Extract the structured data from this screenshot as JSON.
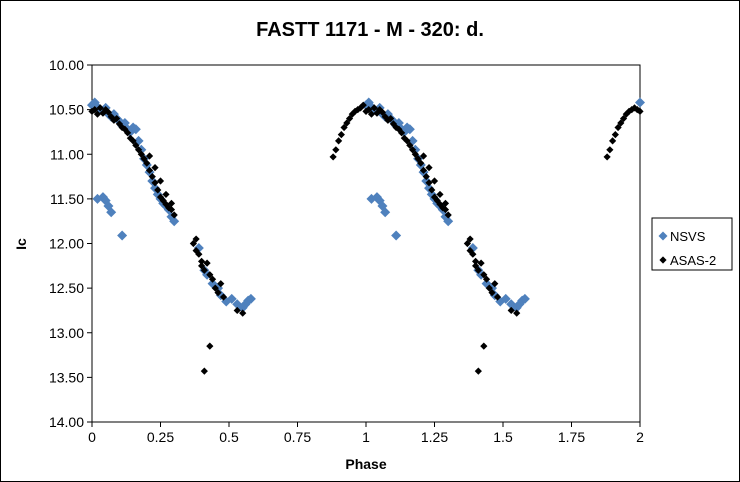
{
  "chart_data": {
    "type": "scatter",
    "title": "FASTT 1171 - M - 320: d.",
    "xlabel": "Phase",
    "ylabel": "Ic",
    "xlim": [
      0,
      2
    ],
    "ylim": [
      10.0,
      14.0
    ],
    "y_reversed": true,
    "x_ticks": [
      "0",
      "0.25",
      "0.5",
      "0.75",
      "1",
      "1.25",
      "1.5",
      "1.75",
      "2"
    ],
    "y_ticks": [
      "10.00",
      "10.50",
      "11.00",
      "11.50",
      "12.00",
      "12.50",
      "13.00",
      "13.50",
      "14.00"
    ],
    "grid": false,
    "legend": "right",
    "series": [
      {
        "name": "NSVS",
        "color": "#4F81BD",
        "marker": "diamond",
        "points": [
          [
            0.0,
            10.45
          ],
          [
            0.01,
            10.42
          ],
          [
            0.02,
            10.47
          ],
          [
            0.03,
            10.5
          ],
          [
            0.04,
            10.52
          ],
          [
            0.05,
            10.48
          ],
          [
            0.06,
            10.55
          ],
          [
            0.07,
            10.58
          ],
          [
            0.08,
            10.55
          ],
          [
            0.09,
            10.6
          ],
          [
            0.1,
            10.63
          ],
          [
            0.11,
            10.68
          ],
          [
            0.12,
            10.65
          ],
          [
            0.13,
            10.72
          ],
          [
            0.14,
            10.75
          ],
          [
            0.15,
            10.7
          ],
          [
            0.16,
            10.72
          ],
          [
            0.17,
            10.85
          ],
          [
            0.18,
            10.95
          ],
          [
            0.19,
            11.05
          ],
          [
            0.2,
            11.12
          ],
          [
            0.21,
            11.2
          ],
          [
            0.22,
            11.3
          ],
          [
            0.23,
            11.38
          ],
          [
            0.24,
            11.45
          ],
          [
            0.25,
            11.5
          ],
          [
            0.26,
            11.55
          ],
          [
            0.27,
            11.58
          ],
          [
            0.28,
            11.62
          ],
          [
            0.29,
            11.7
          ],
          [
            0.3,
            11.75
          ],
          [
            0.02,
            11.5
          ],
          [
            0.04,
            11.48
          ],
          [
            0.05,
            11.52
          ],
          [
            0.06,
            11.58
          ],
          [
            0.07,
            11.65
          ],
          [
            0.11,
            11.91
          ],
          [
            0.39,
            12.05
          ],
          [
            0.41,
            12.3
          ],
          [
            0.42,
            12.35
          ],
          [
            0.44,
            12.45
          ],
          [
            0.46,
            12.5
          ],
          [
            0.47,
            12.58
          ],
          [
            0.49,
            12.65
          ],
          [
            0.51,
            12.62
          ],
          [
            0.53,
            12.68
          ],
          [
            0.55,
            12.72
          ],
          [
            0.56,
            12.68
          ],
          [
            0.57,
            12.64
          ],
          [
            0.58,
            12.62
          ],
          [
            1.0,
            10.45
          ],
          [
            1.01,
            10.42
          ],
          [
            1.02,
            10.47
          ],
          [
            1.03,
            10.5
          ],
          [
            1.04,
            10.52
          ],
          [
            1.05,
            10.48
          ],
          [
            1.06,
            10.55
          ],
          [
            1.07,
            10.58
          ],
          [
            1.08,
            10.55
          ],
          [
            1.09,
            10.6
          ],
          [
            1.1,
            10.63
          ],
          [
            1.11,
            10.68
          ],
          [
            1.12,
            10.65
          ],
          [
            1.13,
            10.72
          ],
          [
            1.14,
            10.75
          ],
          [
            1.15,
            10.7
          ],
          [
            1.16,
            10.72
          ],
          [
            1.17,
            10.85
          ],
          [
            1.18,
            10.95
          ],
          [
            1.19,
            11.05
          ],
          [
            1.2,
            11.12
          ],
          [
            1.21,
            11.2
          ],
          [
            1.22,
            11.3
          ],
          [
            1.23,
            11.38
          ],
          [
            1.24,
            11.45
          ],
          [
            1.25,
            11.5
          ],
          [
            1.26,
            11.55
          ],
          [
            1.27,
            11.58
          ],
          [
            1.28,
            11.62
          ],
          [
            1.29,
            11.7
          ],
          [
            1.3,
            11.75
          ],
          [
            1.02,
            11.5
          ],
          [
            1.04,
            11.48
          ],
          [
            1.05,
            11.52
          ],
          [
            1.06,
            11.58
          ],
          [
            1.07,
            11.65
          ],
          [
            1.11,
            11.91
          ],
          [
            1.39,
            12.05
          ],
          [
            1.41,
            12.3
          ],
          [
            1.42,
            12.35
          ],
          [
            1.44,
            12.45
          ],
          [
            1.46,
            12.5
          ],
          [
            1.47,
            12.58
          ],
          [
            1.49,
            12.65
          ],
          [
            1.51,
            12.62
          ],
          [
            1.53,
            12.68
          ],
          [
            1.55,
            12.72
          ],
          [
            1.56,
            12.68
          ],
          [
            1.57,
            12.64
          ],
          [
            1.58,
            12.62
          ],
          [
            2.0,
            10.42
          ]
        ]
      },
      {
        "name": "ASAS-2",
        "color": "#000000",
        "marker": "diamond",
        "points": [
          [
            0.0,
            10.52
          ],
          [
            0.01,
            10.5
          ],
          [
            0.02,
            10.55
          ],
          [
            0.03,
            10.48
          ],
          [
            0.04,
            10.54
          ],
          [
            0.05,
            10.5
          ],
          [
            0.06,
            10.53
          ],
          [
            0.07,
            10.58
          ],
          [
            0.08,
            10.62
          ],
          [
            0.09,
            10.6
          ],
          [
            0.1,
            10.66
          ],
          [
            0.11,
            10.7
          ],
          [
            0.12,
            10.72
          ],
          [
            0.13,
            10.76
          ],
          [
            0.14,
            10.82
          ],
          [
            0.15,
            10.85
          ],
          [
            0.16,
            10.9
          ],
          [
            0.17,
            10.95
          ],
          [
            0.18,
            11.0
          ],
          [
            0.19,
            11.05
          ],
          [
            0.2,
            11.1
          ],
          [
            0.21,
            11.18
          ],
          [
            0.22,
            11.25
          ],
          [
            0.23,
            11.32
          ],
          [
            0.24,
            11.4
          ],
          [
            0.25,
            11.48
          ],
          [
            0.26,
            11.52
          ],
          [
            0.27,
            11.56
          ],
          [
            0.28,
            11.6
          ],
          [
            0.29,
            11.62
          ],
          [
            0.3,
            11.68
          ],
          [
            0.21,
            11.02
          ],
          [
            0.23,
            11.15
          ],
          [
            0.25,
            11.3
          ],
          [
            0.27,
            11.45
          ],
          [
            0.29,
            11.55
          ],
          [
            0.37,
            12.0
          ],
          [
            0.38,
            11.95
          ],
          [
            0.38,
            12.08
          ],
          [
            0.39,
            12.12
          ],
          [
            0.4,
            12.2
          ],
          [
            0.4,
            12.25
          ],
          [
            0.41,
            12.3
          ],
          [
            0.42,
            12.22
          ],
          [
            0.43,
            12.35
          ],
          [
            0.44,
            12.4
          ],
          [
            0.45,
            12.5
          ],
          [
            0.46,
            12.55
          ],
          [
            0.47,
            12.45
          ],
          [
            0.48,
            12.6
          ],
          [
            0.53,
            12.75
          ],
          [
            0.55,
            12.78
          ],
          [
            0.41,
            13.43
          ],
          [
            0.43,
            13.15
          ],
          [
            0.88,
            11.03
          ],
          [
            0.89,
            10.95
          ],
          [
            0.9,
            10.85
          ],
          [
            0.91,
            10.78
          ],
          [
            0.92,
            10.7
          ],
          [
            0.93,
            10.65
          ],
          [
            0.94,
            10.6
          ],
          [
            0.95,
            10.55
          ],
          [
            0.96,
            10.52
          ],
          [
            0.97,
            10.5
          ],
          [
            0.98,
            10.48
          ],
          [
            0.99,
            10.45
          ],
          [
            1.0,
            10.52
          ],
          [
            1.01,
            10.5
          ],
          [
            1.02,
            10.55
          ],
          [
            1.03,
            10.48
          ],
          [
            1.04,
            10.54
          ],
          [
            1.05,
            10.5
          ],
          [
            1.06,
            10.53
          ],
          [
            1.07,
            10.58
          ],
          [
            1.08,
            10.62
          ],
          [
            1.09,
            10.6
          ],
          [
            1.1,
            10.66
          ],
          [
            1.11,
            10.7
          ],
          [
            1.12,
            10.72
          ],
          [
            1.13,
            10.76
          ],
          [
            1.14,
            10.82
          ],
          [
            1.15,
            10.85
          ],
          [
            1.16,
            10.9
          ],
          [
            1.17,
            10.95
          ],
          [
            1.18,
            11.0
          ],
          [
            1.19,
            11.05
          ],
          [
            1.2,
            11.1
          ],
          [
            1.21,
            11.18
          ],
          [
            1.22,
            11.25
          ],
          [
            1.23,
            11.32
          ],
          [
            1.24,
            11.4
          ],
          [
            1.25,
            11.48
          ],
          [
            1.26,
            11.52
          ],
          [
            1.27,
            11.56
          ],
          [
            1.28,
            11.6
          ],
          [
            1.29,
            11.62
          ],
          [
            1.3,
            11.68
          ],
          [
            1.21,
            11.02
          ],
          [
            1.23,
            11.15
          ],
          [
            1.25,
            11.3
          ],
          [
            1.27,
            11.45
          ],
          [
            1.29,
            11.55
          ],
          [
            1.37,
            12.0
          ],
          [
            1.38,
            11.95
          ],
          [
            1.38,
            12.08
          ],
          [
            1.39,
            12.12
          ],
          [
            1.4,
            12.2
          ],
          [
            1.4,
            12.25
          ],
          [
            1.41,
            12.3
          ],
          [
            1.42,
            12.22
          ],
          [
            1.43,
            12.35
          ],
          [
            1.44,
            12.4
          ],
          [
            1.45,
            12.5
          ],
          [
            1.46,
            12.55
          ],
          [
            1.47,
            12.45
          ],
          [
            1.48,
            12.6
          ],
          [
            1.53,
            12.75
          ],
          [
            1.55,
            12.78
          ],
          [
            1.41,
            13.43
          ],
          [
            1.43,
            13.15
          ],
          [
            1.88,
            11.03
          ],
          [
            1.89,
            10.95
          ],
          [
            1.9,
            10.85
          ],
          [
            1.91,
            10.78
          ],
          [
            1.92,
            10.7
          ],
          [
            1.93,
            10.65
          ],
          [
            1.94,
            10.6
          ],
          [
            1.95,
            10.55
          ],
          [
            1.96,
            10.52
          ],
          [
            1.97,
            10.5
          ],
          [
            1.98,
            10.48
          ],
          [
            1.99,
            10.5
          ],
          [
            2.0,
            10.52
          ]
        ]
      }
    ]
  }
}
